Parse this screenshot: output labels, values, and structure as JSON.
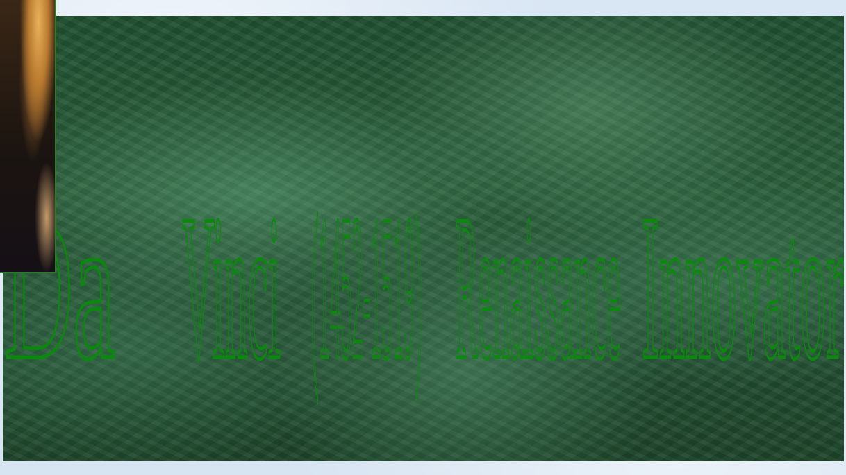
{
  "colors": {
    "background": "#dce8f5",
    "panel": "#2a5e3a",
    "title_outline": "#0a8a0a"
  },
  "title": {
    "words": [
      {
        "text": "Da"
      },
      {
        "text": "Vinci"
      },
      {
        "text": "(1452-1519)"
      },
      {
        "text": "Renaissance"
      },
      {
        "text": "Innovator"
      }
    ]
  },
  "portrait": {
    "icon": "portrait-painting-icon"
  }
}
